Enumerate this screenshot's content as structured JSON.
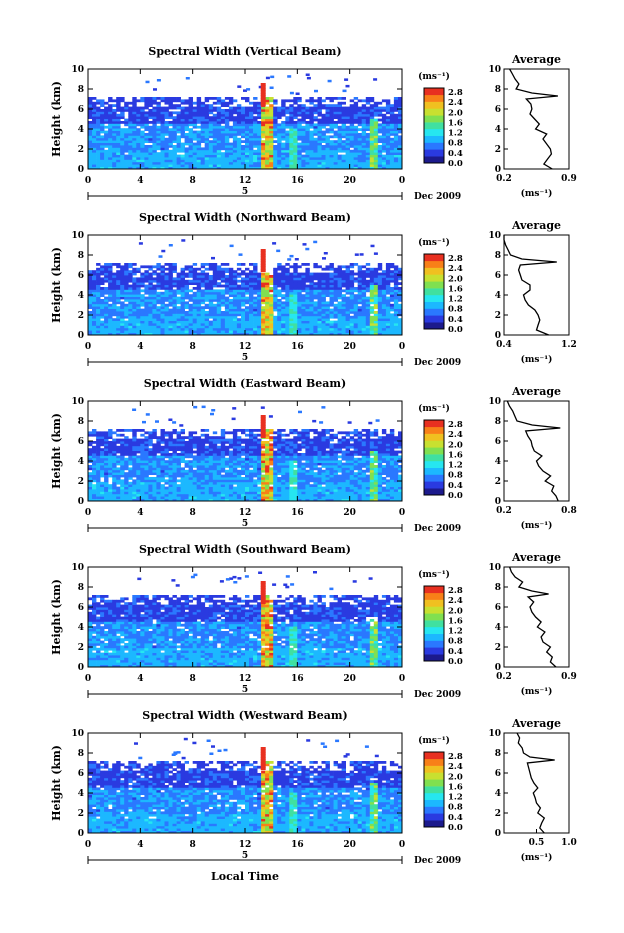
{
  "footer": {
    "xlabel": "Local Time"
  },
  "colorbar": {
    "unit": "(ms⁻¹)",
    "tick_labels": [
      "0.0",
      "0.4",
      "0.8",
      "1.2",
      "1.6",
      "2.0",
      "2.4",
      "2.8"
    ],
    "colors": [
      "#1c1a8c",
      "#2a3ae0",
      "#2a78ff",
      "#1cb8ff",
      "#26e6f0",
      "#40e0a0",
      "#80e050",
      "#c8e030",
      "#f0c020",
      "#f88018",
      "#e83020"
    ]
  },
  "chart_data": [
    {
      "type": "heatmap",
      "title": "Spectral Width (Vertical Beam)",
      "ylabel": "Height (km)",
      "xlim": [
        0,
        24
      ],
      "ylim": [
        0,
        10
      ],
      "x_ticks": [
        "0",
        "4",
        "8",
        "12",
        "16",
        "20",
        "0"
      ],
      "y_ticks": [
        "0",
        "2",
        "4",
        "6",
        "8",
        "10"
      ],
      "date_day": "5",
      "date_label": "Dec 2009",
      "average_profile": {
        "title": "Average",
        "xlabel": "(ms⁻¹)",
        "x_ticks": [
          "0.2",
          "0.9"
        ],
        "y_ticks": [
          "0",
          "2",
          "4",
          "6",
          "8",
          "10"
        ],
        "xlim": [
          0.2,
          0.9
        ],
        "height_km": [
          0,
          0.5,
          1,
          1.5,
          2,
          2.5,
          3,
          3.5,
          4,
          4.5,
          5,
          5.5,
          6,
          6.5,
          7,
          7.3,
          7.6,
          8,
          8.5,
          9,
          9.5,
          10
        ],
        "values": [
          0.72,
          0.63,
          0.67,
          0.71,
          0.7,
          0.66,
          0.62,
          0.66,
          0.54,
          0.58,
          0.53,
          0.48,
          0.5,
          0.49,
          0.44,
          0.78,
          0.5,
          0.33,
          0.36,
          0.32,
          0.29,
          0.26
        ]
      }
    },
    {
      "type": "heatmap",
      "title": "Spectral Width (Northward Beam)",
      "ylabel": "Height (km)",
      "xlim": [
        0,
        24
      ],
      "ylim": [
        0,
        10
      ],
      "x_ticks": [
        "0",
        "4",
        "8",
        "12",
        "16",
        "20",
        "0"
      ],
      "y_ticks": [
        "0",
        "2",
        "4",
        "6",
        "8",
        "10"
      ],
      "date_day": "5",
      "date_label": "Dec 2009",
      "average_profile": {
        "title": "Average",
        "xlabel": "(ms⁻¹)",
        "x_ticks": [
          "0.4",
          "1.2"
        ],
        "y_ticks": [
          "0",
          "2",
          "4",
          "6",
          "8",
          "10"
        ],
        "xlim": [
          0.4,
          1.2
        ],
        "height_km": [
          0,
          0.5,
          1,
          1.5,
          2,
          2.5,
          3,
          3.5,
          4,
          4.5,
          5,
          5.5,
          6,
          6.5,
          7,
          7.3,
          7.6,
          8,
          8.5,
          9,
          9.5,
          10
        ],
        "values": [
          0.95,
          0.8,
          0.82,
          0.84,
          0.82,
          0.78,
          0.7,
          0.66,
          0.64,
          0.72,
          0.72,
          0.62,
          0.6,
          0.58,
          0.6,
          1.05,
          0.62,
          0.48,
          0.45,
          0.42,
          0.4,
          0.4
        ]
      }
    },
    {
      "type": "heatmap",
      "title": "Spectral Width (Eastward Beam)",
      "ylabel": "Height (km)",
      "xlim": [
        0,
        24
      ],
      "ylim": [
        0,
        10
      ],
      "x_ticks": [
        "0",
        "4",
        "8",
        "12",
        "16",
        "20",
        "0"
      ],
      "y_ticks": [
        "0",
        "2",
        "4",
        "6",
        "8",
        "10"
      ],
      "date_day": "5",
      "date_label": "Dec 2009",
      "average_profile": {
        "title": "Average",
        "xlabel": "(ms⁻¹)",
        "x_ticks": [
          "0.2",
          "0.8"
        ],
        "y_ticks": [
          "0",
          "2",
          "4",
          "6",
          "8",
          "10"
        ],
        "xlim": [
          0.2,
          0.8
        ],
        "height_km": [
          0,
          0.5,
          1,
          1.5,
          2,
          2.5,
          3,
          3.5,
          4,
          4.5,
          5,
          5.5,
          6,
          6.5,
          7,
          7.3,
          7.6,
          8,
          8.5,
          9,
          9.5,
          10
        ],
        "values": [
          0.7,
          0.68,
          0.64,
          0.66,
          0.58,
          0.63,
          0.56,
          0.52,
          0.5,
          0.55,
          0.48,
          0.46,
          0.45,
          0.42,
          0.4,
          0.72,
          0.46,
          0.32,
          0.3,
          0.28,
          0.25,
          0.23
        ]
      }
    },
    {
      "type": "heatmap",
      "title": "Spectral Width (Southward Beam)",
      "ylabel": "Height (km)",
      "xlim": [
        0,
        24
      ],
      "ylim": [
        0,
        10
      ],
      "x_ticks": [
        "0",
        "4",
        "8",
        "12",
        "16",
        "20",
        "0"
      ],
      "y_ticks": [
        "0",
        "2",
        "4",
        "6",
        "8",
        "10"
      ],
      "date_day": "5",
      "date_label": "Dec 2009",
      "average_profile": {
        "title": "Average",
        "xlabel": "(ms⁻¹)",
        "x_ticks": [
          "0.2",
          "0.9"
        ],
        "y_ticks": [
          "0",
          "2",
          "4",
          "6",
          "8",
          "10"
        ],
        "xlim": [
          0.2,
          0.9
        ],
        "height_km": [
          0,
          0.5,
          1,
          1.5,
          2,
          2.5,
          3,
          3.5,
          4,
          4.5,
          5,
          5.5,
          6,
          6.5,
          7,
          7.3,
          7.6,
          8,
          8.5,
          9,
          9.5,
          10
        ],
        "values": [
          0.76,
          0.7,
          0.72,
          0.66,
          0.7,
          0.62,
          0.6,
          0.64,
          0.56,
          0.6,
          0.54,
          0.5,
          0.48,
          0.52,
          0.46,
          0.68,
          0.5,
          0.36,
          0.4,
          0.32,
          0.28,
          0.26
        ]
      }
    },
    {
      "type": "heatmap",
      "title": "Spectral Width (Westward Beam)",
      "ylabel": "Height (km)",
      "xlim": [
        0,
        24
      ],
      "ylim": [
        0,
        10
      ],
      "x_ticks": [
        "0",
        "4",
        "8",
        "12",
        "16",
        "20",
        "0"
      ],
      "y_ticks": [
        "0",
        "2",
        "4",
        "6",
        "8",
        "10"
      ],
      "date_day": "5",
      "date_label": "Dec 2009",
      "average_profile": {
        "title": "Average",
        "xlabel": "(ms⁻¹)",
        "x_ticks": [
          "0.5",
          "1.0"
        ],
        "y_ticks": [
          "0",
          "2",
          "4",
          "6",
          "8",
          "10"
        ],
        "xlim": [
          0.0,
          1.0
        ],
        "height_km": [
          0,
          0.5,
          1,
          1.5,
          2,
          2.5,
          3,
          3.5,
          4,
          4.5,
          5,
          5.5,
          6,
          6.5,
          7,
          7.3,
          7.6,
          8,
          8.5,
          9,
          9.5,
          10
        ],
        "values": [
          0.62,
          0.55,
          0.58,
          0.62,
          0.52,
          0.56,
          0.5,
          0.48,
          0.45,
          0.52,
          0.46,
          0.42,
          0.4,
          0.38,
          0.36,
          0.78,
          0.4,
          0.3,
          0.28,
          0.22,
          0.24,
          0.2
        ]
      }
    }
  ]
}
